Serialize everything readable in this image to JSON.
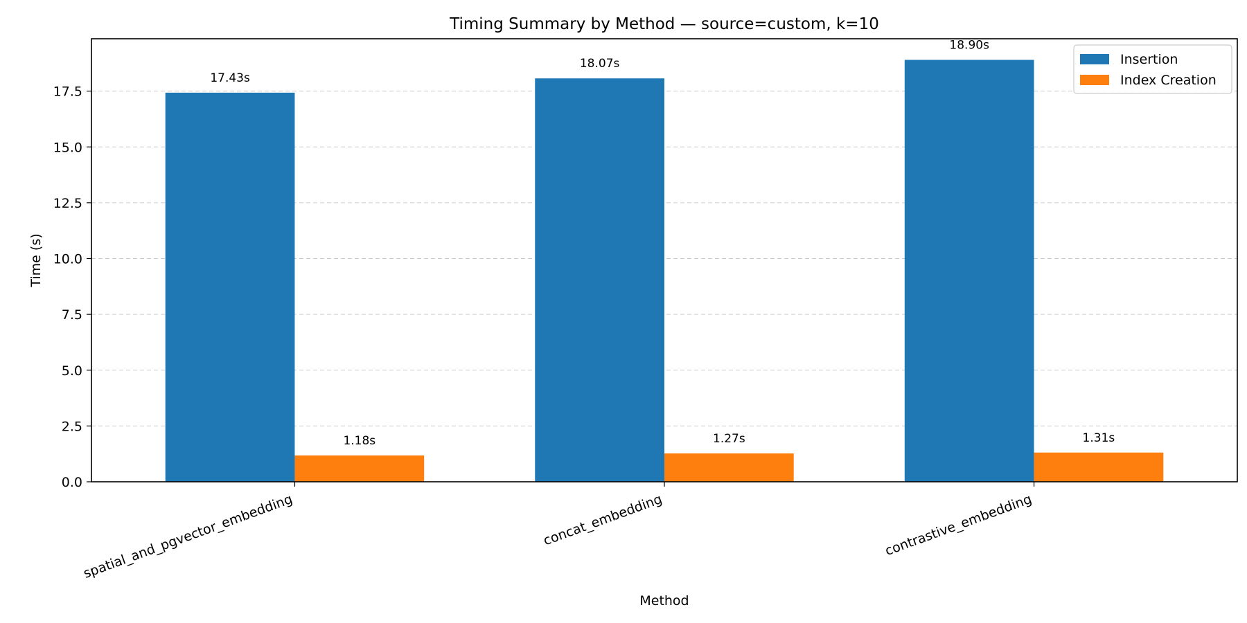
{
  "chart_data": {
    "type": "bar",
    "title": "Timing Summary by Method — source=custom, k=10",
    "xlabel": "Method",
    "ylabel": "Time (s)",
    "categories": [
      "spatial_and_pgvector_embedding",
      "concat_embedding",
      "contrastive_embedding"
    ],
    "series": [
      {
        "name": "Insertion",
        "color": "#1f77b4",
        "values": [
          17.43,
          18.07,
          18.9
        ],
        "labels": [
          "17.43s",
          "18.07s",
          "18.90s"
        ]
      },
      {
        "name": "Index Creation",
        "color": "#ff7f0e",
        "values": [
          1.18,
          1.27,
          1.31
        ],
        "labels": [
          "1.18s",
          "1.27s",
          "1.31s"
        ]
      }
    ],
    "ylim": [
      0,
      19.845
    ],
    "yticks": [
      0.0,
      2.5,
      5.0,
      7.5,
      10.0,
      12.5,
      15.0,
      17.5
    ],
    "ytick_labels": [
      "0.0",
      "2.5",
      "5.0",
      "7.5",
      "10.0",
      "12.5",
      "15.0",
      "17.5"
    ],
    "grid": "y-dashed",
    "legend_position": "top-right"
  }
}
